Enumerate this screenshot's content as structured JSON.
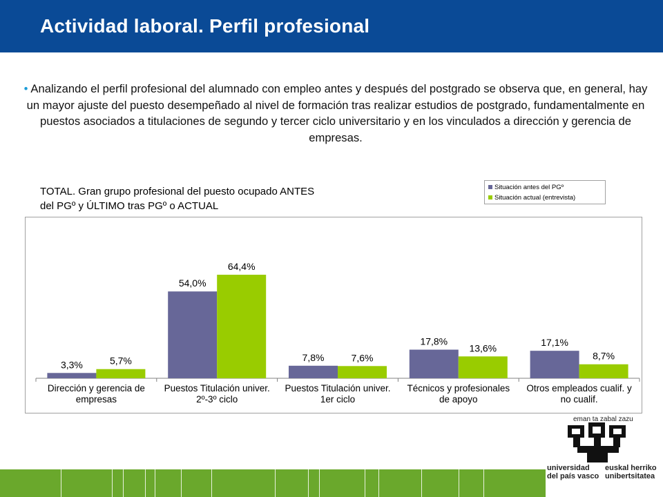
{
  "header": {
    "title": "Actividad laboral. Perfil profesional"
  },
  "intro": {
    "bullet": "•",
    "text": "Analizando el perfil profesional del alumnado con empleo antes y después del postgrado se observa que, en general, hay un mayor ajuste del puesto desempeñado al nivel de formación tras realizar estudios de postgrado, fundamentalmente en puestos asociados a titulaciones de segundo y tercer ciclo universitario y en los vinculados a dirección y gerencia de empresas."
  },
  "colors": {
    "header_bg": "#0a4a96",
    "series_before": "#676798",
    "series_after": "#99cc00",
    "bottom_band": "#6aa82c"
  },
  "chart_data": {
    "type": "bar",
    "title_lines": [
      "TOTAL. Gran grupo profesional del puesto ocupado ANTES",
      "del PGº y ÚLTIMO tras PGº o ACTUAL"
    ],
    "categories": [
      [
        "Dirección y gerencia de",
        "empresas"
      ],
      [
        "Puestos Titulación univer.",
        "2º-3º ciclo"
      ],
      [
        "Puestos Titulación univer.",
        "1er ciclo"
      ],
      [
        "Técnicos y profesionales",
        "de apoyo"
      ],
      [
        "Otros empleados cualif. y",
        "no cualif."
      ]
    ],
    "series": [
      {
        "name": "Situación antes del PGº",
        "color": "#676798",
        "values": [
          3.3,
          54.0,
          7.8,
          17.8,
          17.1
        ],
        "labels": [
          "3,3%",
          "54,0%",
          "7,8%",
          "17,8%",
          "17,1%"
        ]
      },
      {
        "name": "Situación actual (entrevista)",
        "color": "#99cc00",
        "values": [
          5.7,
          64.4,
          7.6,
          13.6,
          8.7
        ],
        "labels": [
          "5,7%",
          "64,4%",
          "7,6%",
          "13,6%",
          "8,7%"
        ]
      }
    ],
    "ylim": [
      0,
      70
    ],
    "legend_position": "top-right",
    "grid": false,
    "xlabel": "",
    "ylabel": ""
  },
  "logo": {
    "motto": "eman ta zabal zazu",
    "name_es": [
      "universidad",
      "del país vasco"
    ],
    "name_eu": [
      "euskal herriko",
      "unibertsitatea"
    ]
  }
}
